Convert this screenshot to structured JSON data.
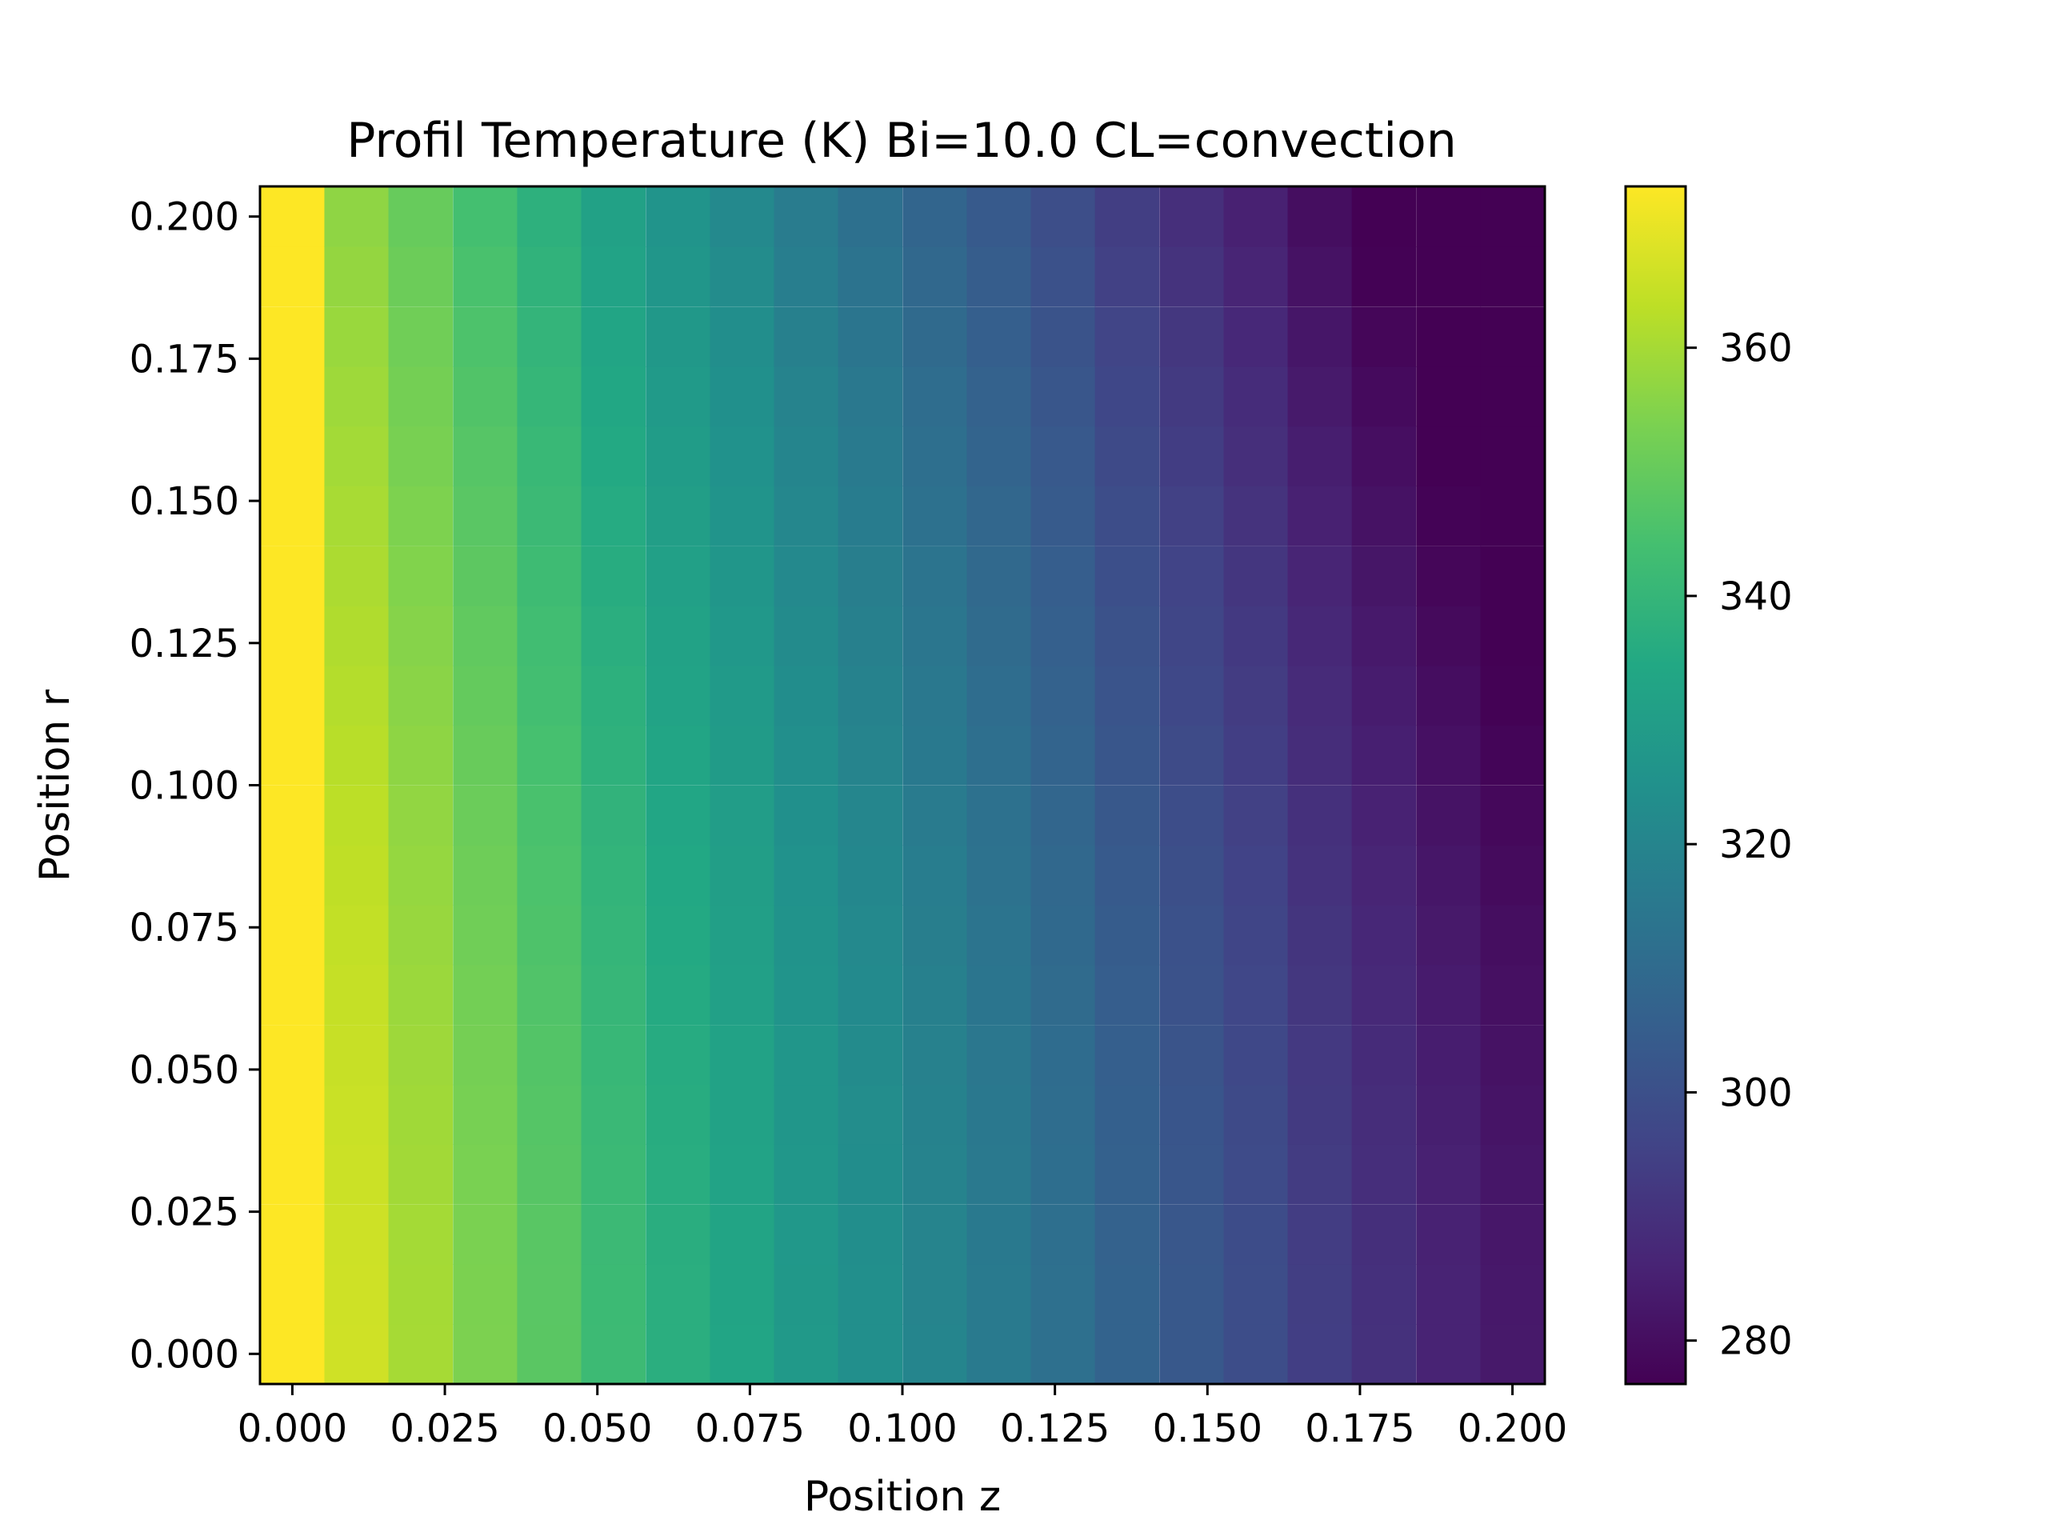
{
  "chart_data": {
    "type": "heatmap",
    "title": "Profil Temperature (K) Bi=10.0 CL=convection",
    "xlabel": "Position z",
    "ylabel": "Position r",
    "colormap": "viridis",
    "x": [
      0.0,
      0.0105,
      0.021,
      0.0316,
      0.0421,
      0.0526,
      0.0632,
      0.0737,
      0.0842,
      0.0947,
      0.1053,
      0.1158,
      0.1263,
      0.1368,
      0.1474,
      0.1579,
      0.1684,
      0.1789,
      0.1895,
      0.2
    ],
    "y": [
      0.0,
      0.0105,
      0.021,
      0.0316,
      0.0421,
      0.0526,
      0.0632,
      0.0737,
      0.0842,
      0.0947,
      0.1053,
      0.1158,
      0.1263,
      0.1368,
      0.1474,
      0.1579,
      0.1684,
      0.1789,
      0.1895,
      0.2
    ],
    "value_model": {
      "description": "T(z,r) for the cylinder, one value per cell",
      "wall_value": 373,
      "near_axis_values": [
        373,
        366,
        360,
        354,
        348,
        342,
        337,
        333,
        328,
        324,
        320,
        316,
        312,
        307,
        303,
        299,
        294,
        290,
        286,
        283
      ]
    },
    "xlim": [
      -0.0053,
      0.2053
    ],
    "ylim": [
      -0.0053,
      0.2053
    ],
    "x_ticks": [
      {
        "value": 0.0,
        "label": "0.000"
      },
      {
        "value": 0.025,
        "label": "0.025"
      },
      {
        "value": 0.05,
        "label": "0.050"
      },
      {
        "value": 0.075,
        "label": "0.075"
      },
      {
        "value": 0.1,
        "label": "0.100"
      },
      {
        "value": 0.125,
        "label": "0.125"
      },
      {
        "value": 0.15,
        "label": "0.150"
      },
      {
        "value": 0.175,
        "label": "0.175"
      },
      {
        "value": 0.2,
        "label": "0.200"
      }
    ],
    "y_ticks": [
      {
        "value": 0.0,
        "label": "0.000"
      },
      {
        "value": 0.025,
        "label": "0.025"
      },
      {
        "value": 0.05,
        "label": "0.050"
      },
      {
        "value": 0.075,
        "label": "0.075"
      },
      {
        "value": 0.1,
        "label": "0.100"
      },
      {
        "value": 0.125,
        "label": "0.125"
      },
      {
        "value": 0.15,
        "label": "0.150"
      },
      {
        "value": 0.175,
        "label": "0.175"
      },
      {
        "value": 0.2,
        "label": "0.200"
      }
    ],
    "colorbar": {
      "range": [
        276.5,
        373
      ],
      "ticks": [
        {
          "value": 280,
          "label": "280"
        },
        {
          "value": 300,
          "label": "300"
        },
        {
          "value": 320,
          "label": "320"
        },
        {
          "value": 340,
          "label": "340"
        },
        {
          "value": 360,
          "label": "360"
        }
      ]
    },
    "grid": false
  }
}
